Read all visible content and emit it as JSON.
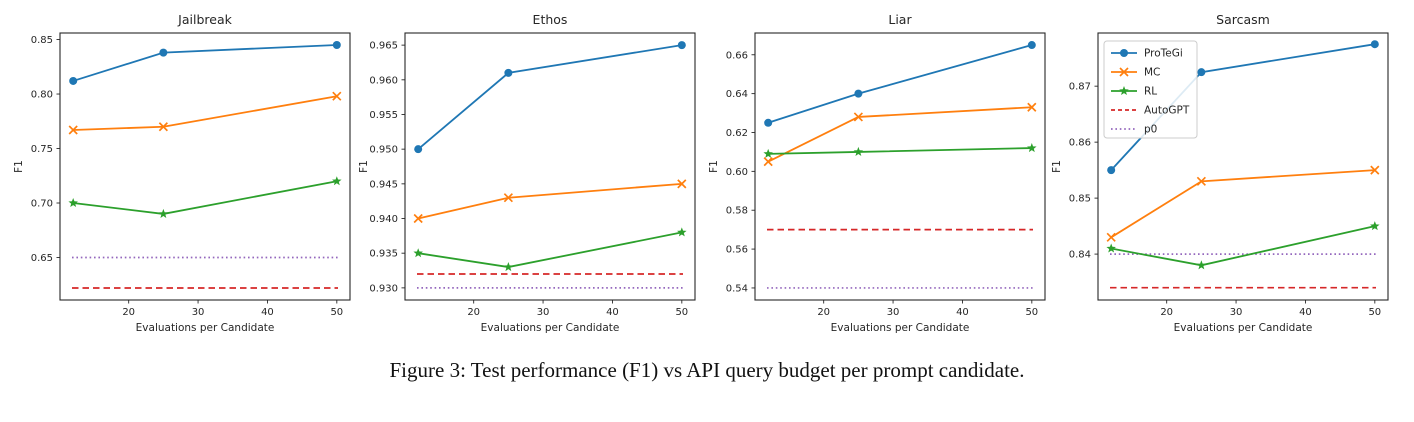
{
  "caption": "Figure 3: Test performance (F1) vs API query budget per prompt candidate.",
  "xlabel": "Evaluations per Candidate",
  "ylabel": "F1",
  "colors": {
    "protegi": "#1f77b4",
    "mc": "#ff7f0e",
    "rl": "#2ca02c",
    "autogpt": "#d62728",
    "p0": "#9467bd",
    "axis": "#262626",
    "legend_border": "#cccccc"
  },
  "legend_entries": [
    "ProTeGi",
    "MC",
    "RL",
    "AutoGPT",
    "p0"
  ],
  "chart_data": [
    {
      "type": "line",
      "title": "Jailbreak",
      "xlabel": "Evaluations per Candidate",
      "ylabel": "F1",
      "x": [
        12,
        25,
        50
      ],
      "xticks": [
        "20",
        "30",
        "40",
        "50"
      ],
      "xlim": [
        10.1,
        51.9
      ],
      "ylim": [
        0.611,
        0.856
      ],
      "yticks": [
        "0.65",
        "0.70",
        "0.75",
        "0.80",
        "0.85"
      ],
      "grid": false,
      "legend": false,
      "series": [
        {
          "name": "ProTeGi",
          "marker": "circle",
          "color": "#1f77b4",
          "values": [
            0.812,
            0.838,
            0.845
          ]
        },
        {
          "name": "MC",
          "marker": "x",
          "color": "#ff7f0e",
          "values": [
            0.767,
            0.77,
            0.798
          ]
        },
        {
          "name": "RL",
          "marker": "star",
          "color": "#2ca02c",
          "values": [
            0.7,
            0.69,
            0.72
          ]
        }
      ],
      "baselines": [
        {
          "name": "AutoGPT",
          "style": "dashed",
          "color": "#d62728",
          "value": 0.622
        },
        {
          "name": "p0",
          "style": "dotted",
          "color": "#9467bd",
          "value": 0.65
        }
      ]
    },
    {
      "type": "line",
      "title": "Ethos",
      "xlabel": "Evaluations per Candidate",
      "ylabel": "F1",
      "x": [
        12,
        25,
        50
      ],
      "xticks": [
        "20",
        "30",
        "40",
        "50"
      ],
      "xlim": [
        10.1,
        51.9
      ],
      "ylim": [
        0.92825,
        0.96675
      ],
      "yticks": [
        "0.930",
        "0.935",
        "0.940",
        "0.945",
        "0.950",
        "0.955",
        "0.960",
        "0.965"
      ],
      "grid": false,
      "legend": false,
      "series": [
        {
          "name": "ProTeGi",
          "marker": "circle",
          "color": "#1f77b4",
          "values": [
            0.95,
            0.961,
            0.965
          ]
        },
        {
          "name": "MC",
          "marker": "x",
          "color": "#ff7f0e",
          "values": [
            0.94,
            0.943,
            0.945
          ]
        },
        {
          "name": "RL",
          "marker": "star",
          "color": "#2ca02c",
          "values": [
            0.935,
            0.933,
            0.938
          ]
        }
      ],
      "baselines": [
        {
          "name": "AutoGPT",
          "style": "dashed",
          "color": "#d62728",
          "value": 0.932
        },
        {
          "name": "p0",
          "style": "dotted",
          "color": "#9467bd",
          "value": 0.93
        }
      ]
    },
    {
      "type": "line",
      "title": "Liar",
      "xlabel": "Evaluations per Candidate",
      "ylabel": "F1",
      "x": [
        12,
        25,
        50
      ],
      "xticks": [
        "20",
        "30",
        "40",
        "50"
      ],
      "xlim": [
        10.1,
        51.9
      ],
      "ylim": [
        0.5338,
        0.6712
      ],
      "yticks": [
        "0.54",
        "0.56",
        "0.58",
        "0.60",
        "0.62",
        "0.64",
        "0.66"
      ],
      "grid": false,
      "legend": false,
      "series": [
        {
          "name": "ProTeGi",
          "marker": "circle",
          "color": "#1f77b4",
          "values": [
            0.625,
            0.64,
            0.665
          ]
        },
        {
          "name": "MC",
          "marker": "x",
          "color": "#ff7f0e",
          "values": [
            0.605,
            0.628,
            0.633
          ]
        },
        {
          "name": "RL",
          "marker": "star",
          "color": "#2ca02c",
          "values": [
            0.609,
            0.61,
            0.612
          ]
        }
      ],
      "baselines": [
        {
          "name": "AutoGPT",
          "style": "dashed",
          "color": "#d62728",
          "value": 0.57
        },
        {
          "name": "p0",
          "style": "dotted",
          "color": "#9467bd",
          "value": 0.54
        }
      ]
    },
    {
      "type": "line",
      "title": "Sarcasm",
      "xlabel": "Evaluations per Candidate",
      "ylabel": "F1",
      "x": [
        12,
        25,
        50
      ],
      "xticks": [
        "20",
        "30",
        "40",
        "50"
      ],
      "xlim": [
        10.1,
        51.9
      ],
      "ylim": [
        0.8318,
        0.8795
      ],
      "yticks": [
        "0.84",
        "0.85",
        "0.86",
        "0.87"
      ],
      "grid": false,
      "legend": true,
      "legend_position": "upper-left",
      "series": [
        {
          "name": "ProTeGi",
          "marker": "circle",
          "color": "#1f77b4",
          "values": [
            0.855,
            0.8725,
            0.8775
          ]
        },
        {
          "name": "MC",
          "marker": "x",
          "color": "#ff7f0e",
          "values": [
            0.843,
            0.853,
            0.855
          ]
        },
        {
          "name": "RL",
          "marker": "star",
          "color": "#2ca02c",
          "values": [
            0.841,
            0.838,
            0.845
          ]
        }
      ],
      "baselines": [
        {
          "name": "AutoGPT",
          "style": "dashed",
          "color": "#d62728",
          "value": 0.834
        },
        {
          "name": "p0",
          "style": "dotted",
          "color": "#9467bd",
          "value": 0.84
        }
      ]
    }
  ]
}
